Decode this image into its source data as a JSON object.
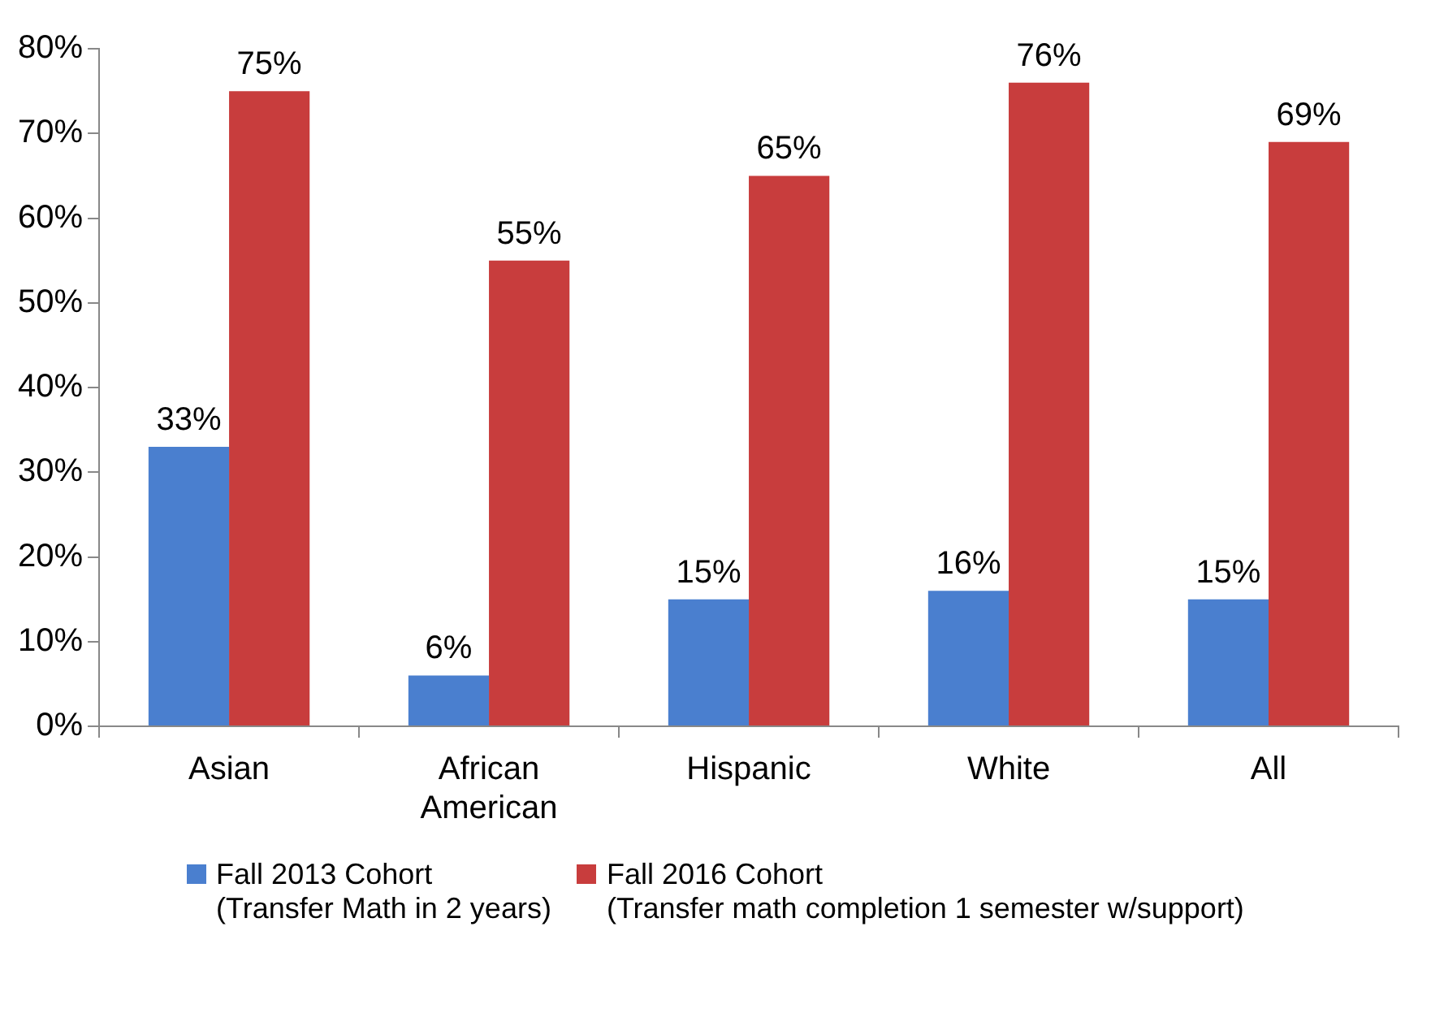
{
  "chart_data": {
    "type": "bar",
    "categories": [
      "Asian",
      "African American",
      "Hispanic",
      "White",
      "All"
    ],
    "series": [
      {
        "name": "Fall 2013 Cohort\n(Transfer Math in 2 years)",
        "color": "#4a7fcf",
        "values": [
          33,
          6,
          15,
          16,
          15
        ],
        "value_labels": [
          "33%",
          "6%",
          "15%",
          "16%",
          "15%"
        ]
      },
      {
        "name": "Fall 2016 Cohort\n(Transfer math completion 1 semester w/support)",
        "color": "#c83d3d",
        "values": [
          75,
          55,
          65,
          76,
          69
        ],
        "value_labels": [
          "75%",
          "55%",
          "65%",
          "76%",
          "69%"
        ]
      }
    ],
    "ylim": [
      0,
      80
    ],
    "yticks": [
      {
        "value": 0,
        "label": "0%"
      },
      {
        "value": 10,
        "label": "10%"
      },
      {
        "value": 20,
        "label": "20%"
      },
      {
        "value": 30,
        "label": "30%"
      },
      {
        "value": 40,
        "label": "40%"
      },
      {
        "value": 50,
        "label": "50%"
      },
      {
        "value": 60,
        "label": "60%"
      },
      {
        "value": 70,
        "label": "70%"
      },
      {
        "value": 80,
        "label": "80%"
      }
    ],
    "grid": false,
    "legend": "bottom"
  }
}
